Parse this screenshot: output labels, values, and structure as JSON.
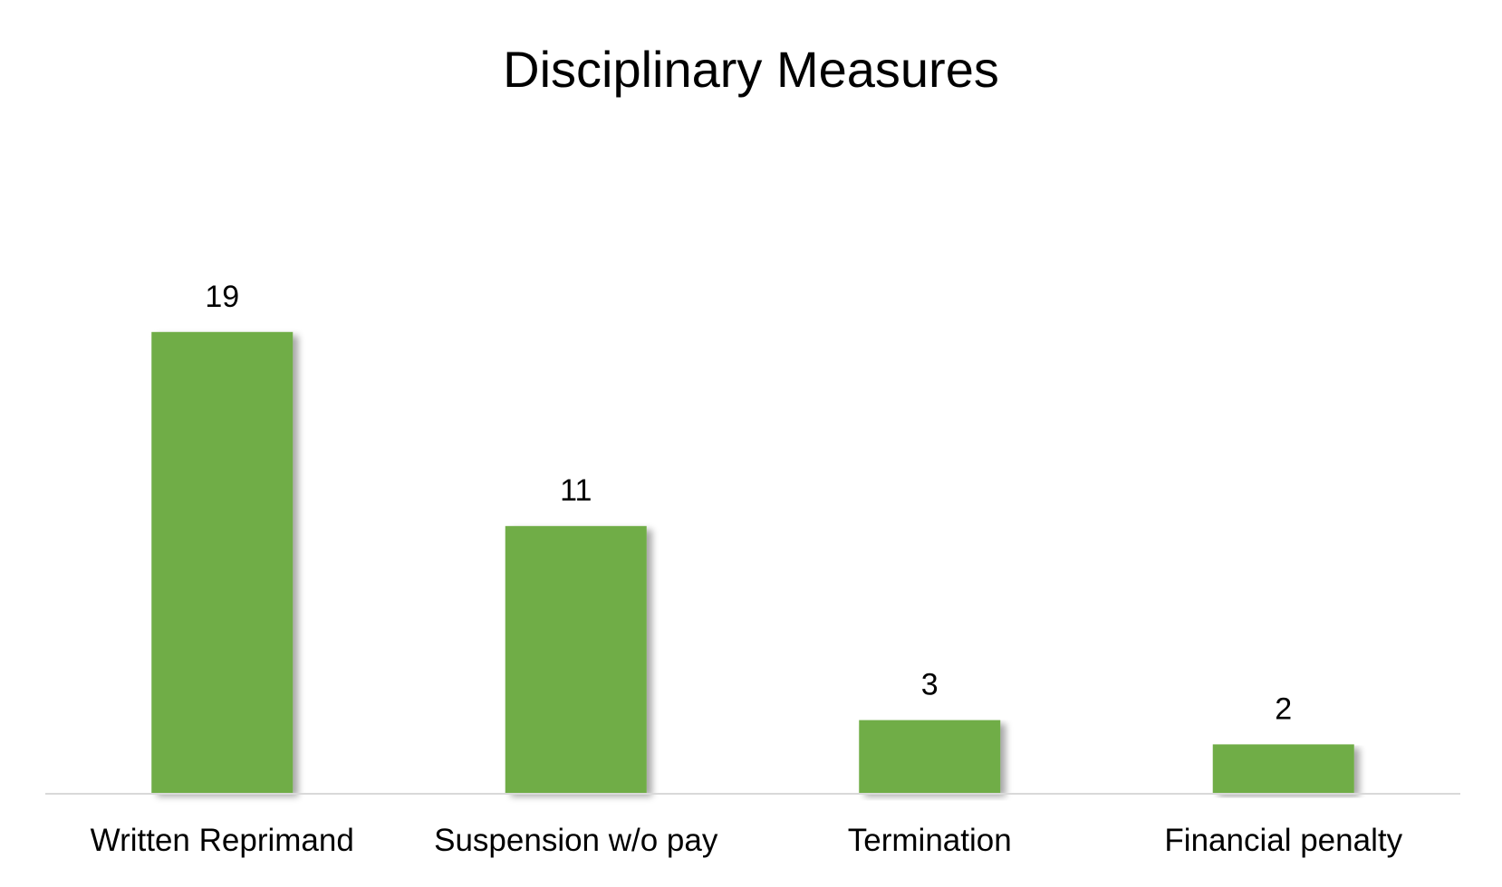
{
  "chart_data": {
    "type": "bar",
    "title": "Disciplinary Measures",
    "categories": [
      "Written Reprimand",
      "Suspension w/o pay",
      "Termination",
      "Financial penalty"
    ],
    "values": [
      19,
      11,
      3,
      2
    ],
    "xlabel": "",
    "ylabel": "",
    "ylim": [
      0,
      22
    ],
    "grid": false,
    "legend": "none",
    "data_labels": true,
    "colors": {
      "bar": "#70AD47",
      "axis": "#D9D9D9",
      "text": "#000000"
    }
  }
}
